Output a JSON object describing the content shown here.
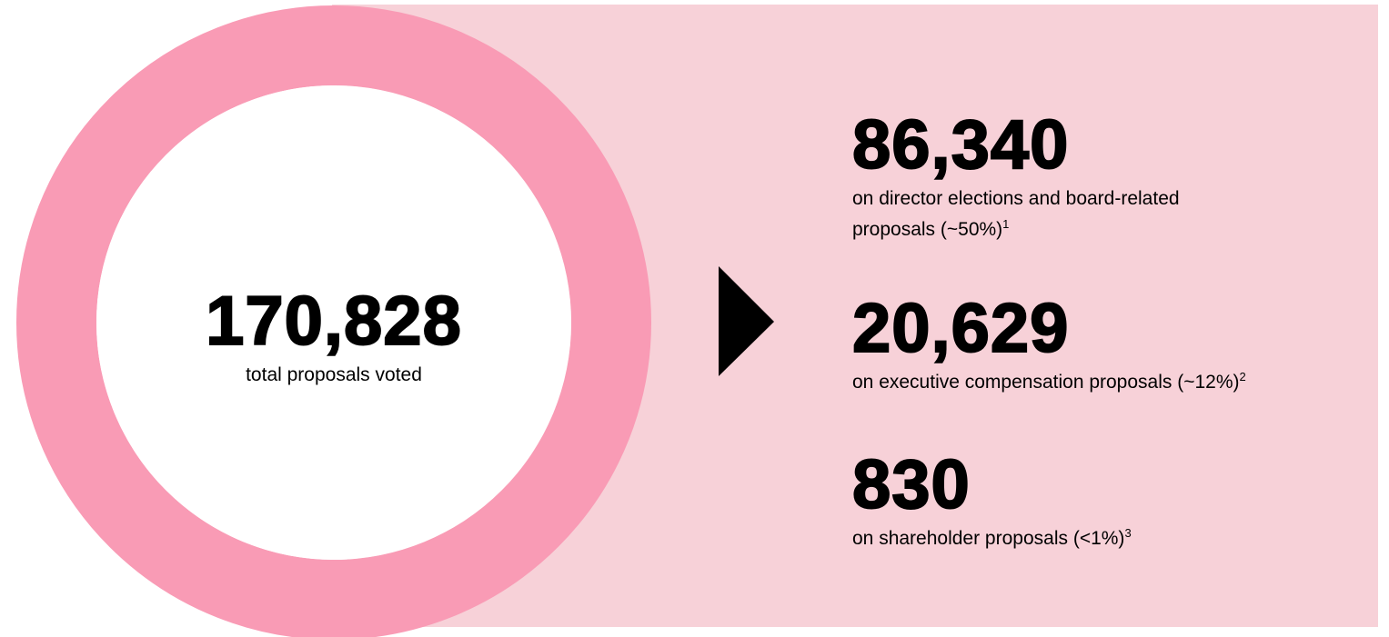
{
  "total": {
    "value": "170,828",
    "label": "total proposals voted"
  },
  "items": [
    {
      "value": "86,340",
      "description": "on director elections and board-related proposals (~50%)",
      "note": "1"
    },
    {
      "value": "20,629",
      "description": "on executive compensation proposals (~12%)",
      "note": "2"
    },
    {
      "value": "830",
      "description": "on shareholder proposals (<1%)",
      "note": "3"
    }
  ]
}
